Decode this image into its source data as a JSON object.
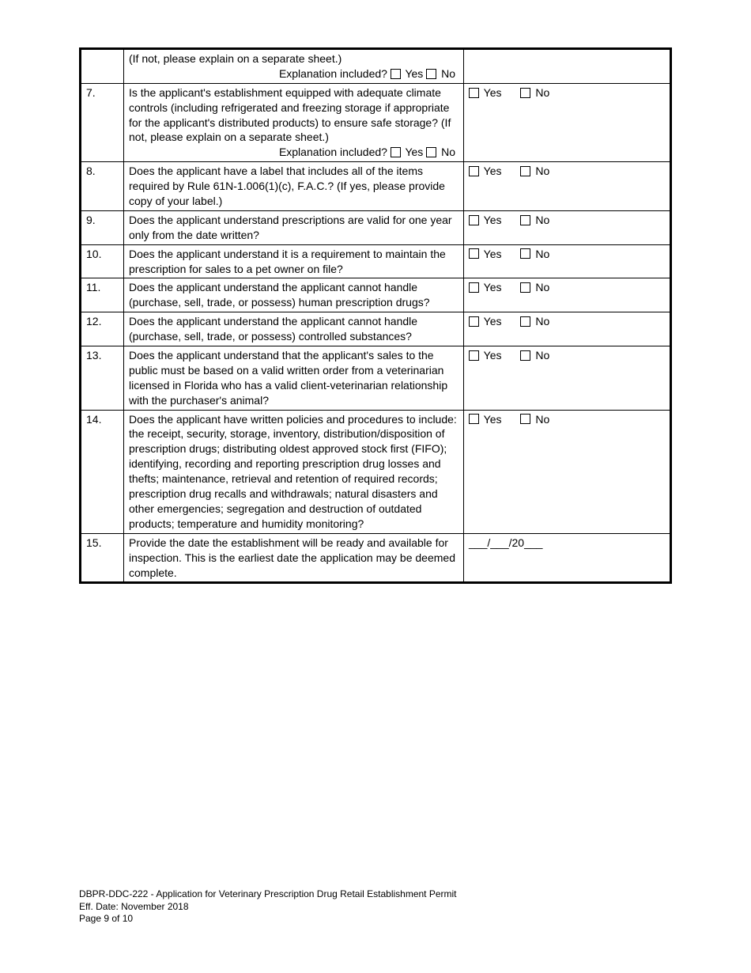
{
  "labels": {
    "yes": "Yes",
    "no": "No",
    "explanation_included": "Explanation included?"
  },
  "rows": [
    {
      "num": "",
      "question_text": "(If not, please explain on a separate sheet.)",
      "has_explanation_line": true,
      "answer_type": "none"
    },
    {
      "num": "7.",
      "question_text": "Is the applicant's establishment equipped with adequate climate controls (including refrigerated and freezing storage if appropriate for the applicant's distributed products) to ensure safe storage? (If not, please explain on a separate sheet.)",
      "has_explanation_line": true,
      "answer_type": "yesno"
    },
    {
      "num": "8.",
      "question_text": "Does the applicant have a label that includes all of the items required by Rule 61N-1.006(1)(c), F.A.C.?  (If yes, please provide copy of your label.)",
      "has_explanation_line": false,
      "answer_type": "yesno"
    },
    {
      "num": "9.",
      "question_text": "Does the applicant understand prescriptions are valid for one year only from the date written?",
      "has_explanation_line": false,
      "answer_type": "yesno"
    },
    {
      "num": "10.",
      "question_text": "Does the applicant understand it is a requirement to maintain the prescription for sales to a pet owner on file?",
      "has_explanation_line": false,
      "answer_type": "yesno"
    },
    {
      "num": "11.",
      "question_text": "Does the applicant understand the applicant cannot handle (purchase, sell, trade, or possess) human prescription drugs?",
      "has_explanation_line": false,
      "answer_type": "yesno"
    },
    {
      "num": "12.",
      "question_text": "Does the applicant understand the applicant cannot handle (purchase, sell, trade, or possess) controlled substances?",
      "has_explanation_line": false,
      "answer_type": "yesno"
    },
    {
      "num": "13.",
      "question_text": "Does the applicant understand that the applicant's sales to the public must be based on a valid written order from a veterinarian licensed in Florida who has a valid client-veterinarian relationship with the purchaser's animal?",
      "has_explanation_line": false,
      "answer_type": "yesno"
    },
    {
      "num": "14.",
      "question_text": "Does the applicant have written policies and procedures to include:  the receipt, security, storage, inventory, distribution/disposition of prescription drugs; distributing oldest approved stock first (FIFO); identifying, recording and reporting prescription drug losses and thefts; maintenance, retrieval and retention of required records; prescription drug recalls and withdrawals; natural disasters and other emergencies; segregation and destruction of outdated products; temperature and humidity monitoring?",
      "has_explanation_line": false,
      "answer_type": "yesno"
    },
    {
      "num": "15.",
      "question_text": "Provide the date the establishment will be ready and available for inspection. This is the earliest date the application may be deemed complete.",
      "has_explanation_line": false,
      "answer_type": "date",
      "date_template": "___/___/20___"
    }
  ],
  "footer": {
    "title": "DBPR-DDC-222 - Application for Veterinary Prescription Drug Retail Establishment Permit",
    "eff_date": "Eff. Date: November 2018",
    "page": "Page 9 of 10"
  }
}
